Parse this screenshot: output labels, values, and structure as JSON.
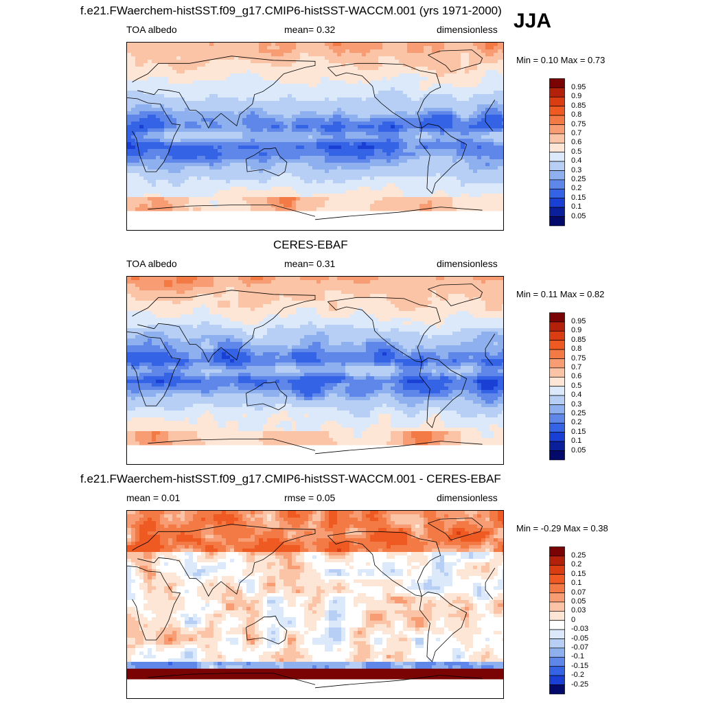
{
  "season": "JJA",
  "panels": [
    {
      "id": "model",
      "title": "f.e21.FWaerchem-histSST.f09_g17.CMIP6-histSST-WACCM.001 (yrs 1971-2000)",
      "left_label": "TOA albedo",
      "center_label": "mean=   0.32",
      "right_label": "dimensionless",
      "minmax": "Min =   0.10 Max =   0.73",
      "kind": "abs"
    },
    {
      "id": "obs",
      "title": "CERES-EBAF",
      "left_label": "TOA albedo",
      "center_label": "mean=   0.31",
      "right_label": "dimensionless",
      "minmax": "Min =   0.11 Max =   0.82",
      "kind": "abs"
    },
    {
      "id": "diff",
      "title": "f.e21.FWaerchem-histSST.f09_g17.CMIP6-histSST-WACCM.001 - CERES-EBAF",
      "left_label": "mean =   0.01",
      "center_label": "rmse =   0.05",
      "right_label": "dimensionless",
      "minmax": "Min =  -0.29 Max =   0.38",
      "kind": "diff"
    }
  ],
  "chart_data": [
    {
      "type": "heatmap",
      "title": "f.e21.FWaerchem-histSST.f09_g17.CMIP6-histSST-WACCM.001 (yrs 1971-2000)",
      "variable": "TOA albedo",
      "units": "dimensionless",
      "mean": 0.32,
      "min": 0.1,
      "max": 0.73,
      "colorbar_levels": [
        "0.95",
        "0.9",
        "0.85",
        "0.8",
        "0.75",
        "0.7",
        "0.6",
        "0.5",
        "0.4",
        "0.3",
        "0.25",
        "0.2",
        "0.15",
        "0.1",
        "0.05"
      ]
    },
    {
      "type": "heatmap",
      "title": "CERES-EBAF",
      "variable": "TOA albedo",
      "units": "dimensionless",
      "mean": 0.31,
      "min": 0.11,
      "max": 0.82,
      "colorbar_levels": [
        "0.95",
        "0.9",
        "0.85",
        "0.8",
        "0.75",
        "0.7",
        "0.6",
        "0.5",
        "0.4",
        "0.3",
        "0.25",
        "0.2",
        "0.15",
        "0.1",
        "0.05"
      ]
    },
    {
      "type": "heatmap",
      "title": "f.e21.FWaerchem-histSST.f09_g17.CMIP6-histSST-WACCM.001 - CERES-EBAF",
      "units": "dimensionless",
      "mean": 0.01,
      "rmse": 0.05,
      "min": -0.29,
      "max": 0.38,
      "colorbar_levels": [
        "0.25",
        "0.2",
        "0.15",
        "0.1",
        "0.07",
        "0.05",
        "0.03",
        "0",
        "-0.03",
        "-0.05",
        "-0.07",
        "-0.1",
        "-0.15",
        "-0.2",
        "-0.25"
      ]
    }
  ],
  "colors": {
    "abs": [
      "#7a0403",
      "#b4210b",
      "#db3d12",
      "#ef5a23",
      "#f47a45",
      "#f89d73",
      "#fcc4a6",
      "#fde6d6",
      "#dbe9fb",
      "#b7cff4",
      "#8fb0ee",
      "#5f87e9",
      "#3463e5",
      "#1a3fd4",
      "#0a1f9a",
      "#030a6b"
    ],
    "diff": [
      "#7a0403",
      "#b4210b",
      "#db3d12",
      "#ef5a23",
      "#f47a45",
      "#f89d73",
      "#fcc4a6",
      "#fde6d6",
      "#ffffff",
      "#dbe9fb",
      "#b7cff4",
      "#8fb0ee",
      "#5f87e9",
      "#3463e5",
      "#1a3fd4",
      "#030a6b"
    ]
  }
}
